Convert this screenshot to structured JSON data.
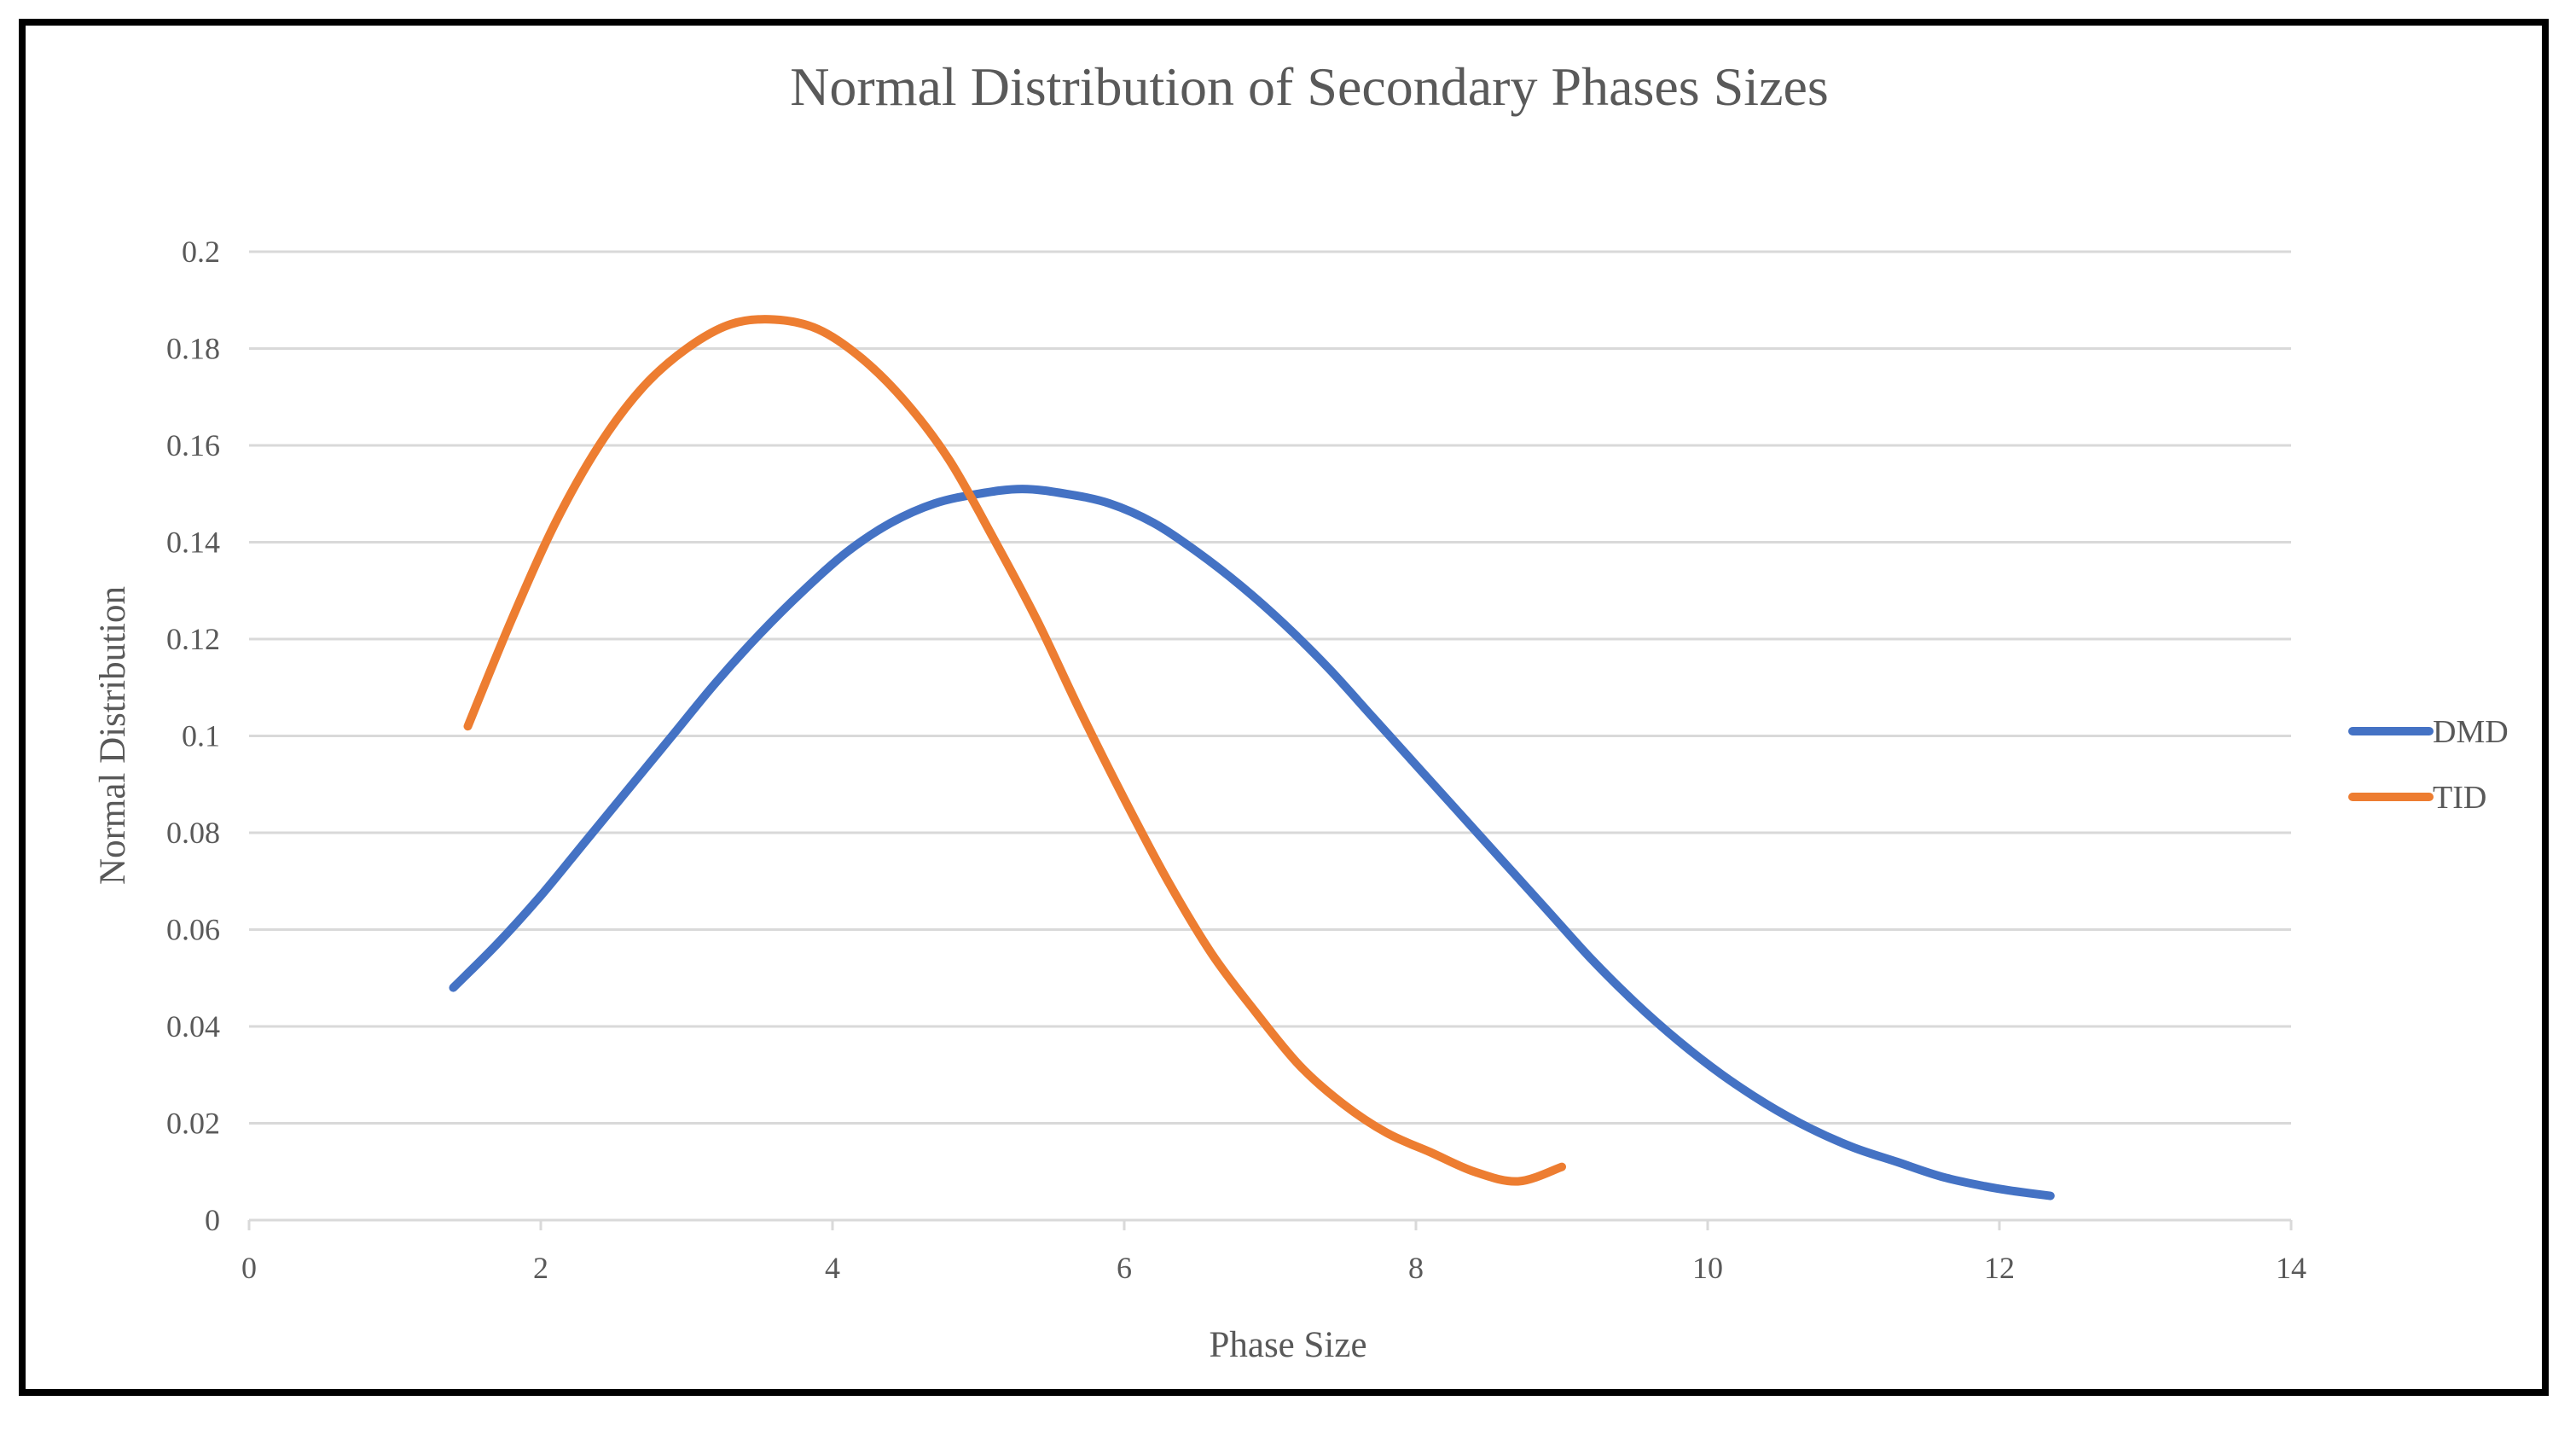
{
  "chart_data": {
    "type": "line",
    "title": "Normal Distribution of Secondary Phases Sizes",
    "xlabel": "Phase Size",
    "ylabel": "Normal Distribution",
    "xlim": [
      0,
      14
    ],
    "ylim": [
      0,
      0.2
    ],
    "x_ticks": [
      "0",
      "2",
      "4",
      "6",
      "8",
      "10",
      "12",
      "14"
    ],
    "y_ticks": [
      "0",
      "0.02",
      "0.04",
      "0.06",
      "0.08",
      "0.1",
      "0.12",
      "0.14",
      "0.16",
      "0.18",
      "0.2"
    ],
    "grid": true,
    "legend_position": "right",
    "series": [
      {
        "name": "DMD",
        "color": "#4472C4",
        "x": [
          1.4,
          1.7,
          2.0,
          2.3,
          2.6,
          2.9,
          3.2,
          3.5,
          3.8,
          4.1,
          4.4,
          4.7,
          5.0,
          5.3,
          5.6,
          5.9,
          6.2,
          6.5,
          6.8,
          7.1,
          7.4,
          7.7,
          8.0,
          8.3,
          8.6,
          8.9,
          9.2,
          9.5,
          9.8,
          10.1,
          10.4,
          10.7,
          11.0,
          11.3,
          11.6,
          11.9,
          12.1,
          12.35
        ],
        "values": [
          0.048,
          0.057,
          0.067,
          0.078,
          0.089,
          0.1,
          0.111,
          0.121,
          0.13,
          0.138,
          0.144,
          0.148,
          0.15,
          0.151,
          0.15,
          0.148,
          0.144,
          0.138,
          0.131,
          0.123,
          0.114,
          0.104,
          0.094,
          0.084,
          0.074,
          0.064,
          0.054,
          0.045,
          0.037,
          0.03,
          0.024,
          0.019,
          0.015,
          0.012,
          0.009,
          0.007,
          0.006,
          0.005
        ]
      },
      {
        "name": "TID",
        "color": "#ED7D31",
        "x": [
          1.5,
          1.8,
          2.1,
          2.4,
          2.7,
          3.0,
          3.3,
          3.6,
          3.9,
          4.2,
          4.5,
          4.8,
          5.1,
          5.4,
          5.7,
          6.0,
          6.3,
          6.6,
          6.9,
          7.2,
          7.5,
          7.8,
          8.1,
          8.4,
          8.7,
          9.0
        ],
        "values": [
          0.102,
          0.124,
          0.144,
          0.16,
          0.172,
          0.18,
          0.185,
          0.186,
          0.184,
          0.178,
          0.169,
          0.157,
          0.141,
          0.124,
          0.105,
          0.087,
          0.07,
          0.055,
          0.043,
          0.032,
          0.024,
          0.018,
          0.014,
          0.01,
          0.008,
          0.011
        ]
      }
    ]
  }
}
